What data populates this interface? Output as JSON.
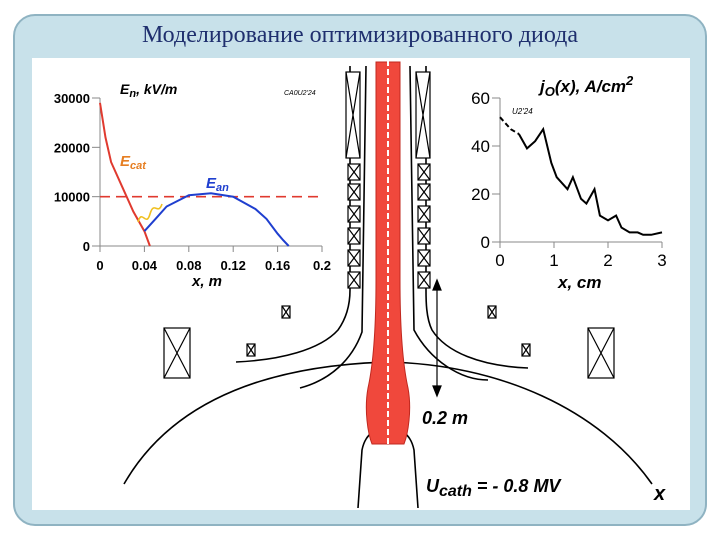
{
  "title": "Моделирование оптимизированного диода",
  "field_plot": {
    "ylabel_main": "E",
    "ylabel_sub": "n",
    "ylabel_unit": ", kV/m",
    "stamp": "CA0U2'24",
    "y_ticks": [
      "30000",
      "20000",
      "10000",
      "0"
    ],
    "x_ticks": [
      "0",
      "0.04",
      "0.08",
      "0.12",
      "0.16",
      "0.2"
    ],
    "xlabel": "x, m",
    "label_cat_main": "E",
    "label_cat_sub": "cat",
    "label_an_main": "E",
    "label_an_sub": "an",
    "color_cat": "#e03a2f",
    "color_an": "#1f3fcf",
    "color_threshold": "#e03a2f"
  },
  "current_plot": {
    "ylabel_main": "j",
    "ylabel_sub": "O",
    "ylabel_rest": "(x), A/cm",
    "ylabel_sup": "2",
    "stamp": "U2'24",
    "y_ticks": [
      "60",
      "40",
      "20",
      "0"
    ],
    "x_ticks": [
      "0",
      "1",
      "2",
      "3"
    ],
    "xlabel": "x, cm"
  },
  "diode": {
    "gap_label": "0.2 m",
    "voltage_label_main": "U",
    "voltage_label_sub": "cath",
    "voltage_label_rest": " = - 0.8 MV",
    "axis_label": "x",
    "beam_color": "#f0483c"
  },
  "chart_data": [
    {
      "type": "line",
      "title": "",
      "ylabel": "En, kV/m",
      "xlabel": "x, m",
      "xlim": [
        0,
        0.2
      ],
      "ylim": [
        0,
        30000
      ],
      "series": [
        {
          "name": "Ecat",
          "x": [
            0.0,
            0.005,
            0.01,
            0.02,
            0.03,
            0.04,
            0.045
          ],
          "values": [
            29000,
            22000,
            17000,
            12000,
            7000,
            3000,
            0
          ]
        },
        {
          "name": "Ecat threshold (dashed)",
          "x": [
            0.0,
            0.2
          ],
          "values": [
            10000,
            10000
          ]
        },
        {
          "name": "Ean",
          "x": [
            0.04,
            0.05,
            0.06,
            0.08,
            0.1,
            0.12,
            0.14,
            0.15,
            0.16,
            0.165,
            0.17,
            0.17
          ],
          "values": [
            3000,
            5500,
            8000,
            10300,
            10700,
            10000,
            7500,
            5500,
            2500,
            1200,
            0,
            0
          ]
        }
      ]
    },
    {
      "type": "line",
      "title": "",
      "ylabel": "jO(x), A/cm2",
      "xlabel": "x, cm",
      "xlim": [
        0,
        3
      ],
      "ylim": [
        0,
        60
      ],
      "series": [
        {
          "name": "jO(x)",
          "x": [
            0.0,
            0.2,
            0.35,
            0.5,
            0.65,
            0.8,
            0.95,
            1.05,
            1.25,
            1.35,
            1.5,
            1.6,
            1.75,
            1.85,
            2.0,
            2.15,
            2.25,
            2.4,
            2.55,
            2.65,
            2.8,
            3.0
          ],
          "values": [
            52,
            47,
            45,
            39,
            42,
            47,
            33,
            27,
            22,
            27,
            18,
            16,
            22,
            11,
            9,
            11,
            6,
            4,
            4,
            3,
            3,
            4
          ]
        }
      ]
    }
  ]
}
